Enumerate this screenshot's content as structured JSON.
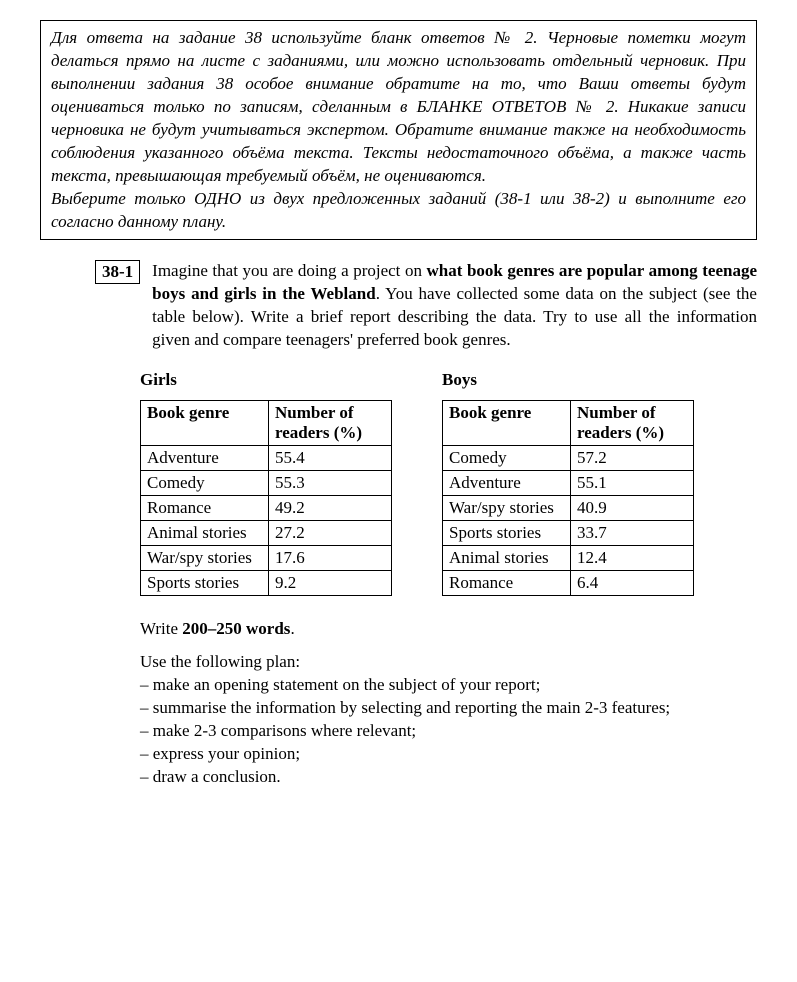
{
  "instruction": {
    "p1": "Для ответа на задание 38 используйте бланк ответов № 2. Черновые пометки могут делаться прямо на листе с заданиями, или можно использовать отдельный черновик. При выполнении задания 38 особое внимание обратите на то, что Ваши ответы будут оцениваться только по записям, сделанным в БЛАНКЕ ОТВЕТОВ № 2. Никакие записи черновика не будут учитываться экспертом. Обратите внимание также на необходимость соблюдения указанного объёма текста. Тексты недостаточного объёма, а также часть текста, превышающая требуемый объём, не оцениваются.",
    "p2": "Выберите только ОДНО из двух предложенных заданий (38-1 или 38-2) и выполните его согласно данному плану."
  },
  "task": {
    "number": "38-1",
    "lead": "Imagine that you are doing a project on ",
    "bold": "what book genres are popular among teenage boys and girls in the Webland",
    "tail": ". You have collected some data on the subject (see the table below). Write a brief report describing the data. Try to use all the information given and compare teenagers' preferred book genres."
  },
  "tables": {
    "col_genre": "Book genre",
    "col_num_l1": "Number of",
    "col_num_l2": "readers (%)",
    "girls": {
      "title": "Girls",
      "rows": [
        {
          "genre": "Adventure",
          "val": "55.4"
        },
        {
          "genre": "Comedy",
          "val": "55.3"
        },
        {
          "genre": "Romance",
          "val": "49.2"
        },
        {
          "genre": "Animal stories",
          "val": "27.2"
        },
        {
          "genre": "War/spy stories",
          "val": "17.6"
        },
        {
          "genre": "Sports stories",
          "val": "9.2"
        }
      ]
    },
    "boys": {
      "title": "Boys",
      "rows": [
        {
          "genre": "Comedy",
          "val": "57.2"
        },
        {
          "genre": "Adventure",
          "val": "55.1"
        },
        {
          "genre": "War/spy stories",
          "val": "40.9"
        },
        {
          "genre": "Sports stories",
          "val": "33.7"
        },
        {
          "genre": "Animal stories",
          "val": "12.4"
        },
        {
          "genre": "Romance",
          "val": "6.4"
        }
      ]
    }
  },
  "footer": {
    "write_pre": "Write ",
    "write_bold": "200–250 words",
    "write_post": ".",
    "plan_intro": "Use the following plan:",
    "plan": [
      "– make an opening statement on the subject of your report;",
      "– summarise the information by selecting and reporting the main 2-3 features;",
      "– make 2-3 comparisons where relevant;",
      "– express your opinion;",
      "– draw a conclusion."
    ]
  }
}
